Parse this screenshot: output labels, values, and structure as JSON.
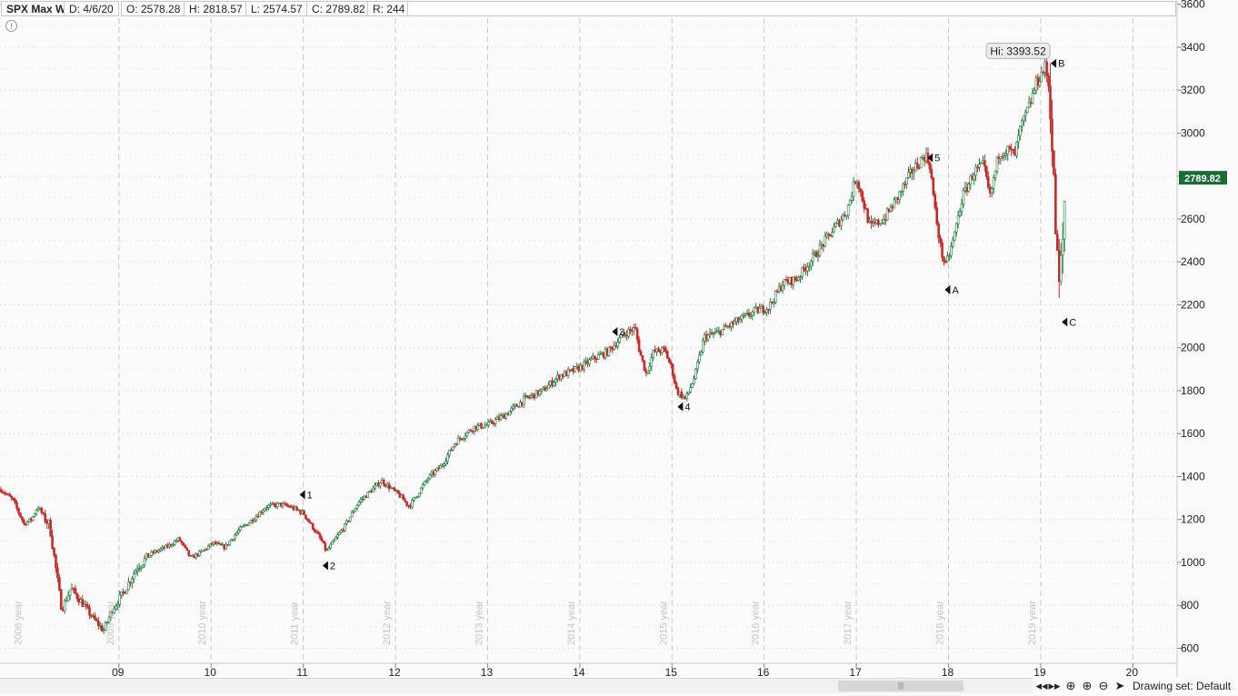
{
  "header": {
    "symbol": "SPX Max W",
    "date": "D: 4/6/20",
    "open": "O: 2578.28",
    "high": "H: 2818.57",
    "low": "L: 2574.57",
    "close": "C: 2789.82",
    "range": "R: 244"
  },
  "info_icon": "!",
  "hi_label": "Hi: 3393.52",
  "last_price": "2789.82",
  "footer": {
    "scroll_grip": "|||",
    "drawing_set": "Drawing set: Default",
    "icons": [
      "scroll-left-icon",
      "scroll-right-icon",
      "crosshair-icon",
      "zoom-in-icon",
      "zoom-out-icon",
      "cursor-icon"
    ]
  },
  "colors": {
    "up": "#1f7a3a",
    "down": "#c42b2b",
    "badge": "#1d6b36",
    "grid": "#d2d2d2"
  },
  "chart_data": {
    "type": "candlestick",
    "interval": "weekly",
    "y_ticks": [
      600,
      800,
      1000,
      1200,
      1400,
      1600,
      1800,
      2000,
      2200,
      2400,
      2600,
      2800,
      3000,
      3200,
      3400,
      3600
    ],
    "y_range": [
      530,
      3620
    ],
    "x_ticks": [
      {
        "label": "09",
        "t": 2009.0
      },
      {
        "label": "10",
        "t": 2010.0
      },
      {
        "label": "11",
        "t": 2011.0
      },
      {
        "label": "12",
        "t": 2012.0
      },
      {
        "label": "13",
        "t": 2013.0
      },
      {
        "label": "14",
        "t": 2014.0
      },
      {
        "label": "15",
        "t": 2015.0
      },
      {
        "label": "16",
        "t": 2016.0
      },
      {
        "label": "17",
        "t": 2017.0
      },
      {
        "label": "18",
        "t": 2018.0
      },
      {
        "label": "19",
        "t": 2019.0
      },
      {
        "label": "20",
        "t": 2020.0
      }
    ],
    "year_labels": [
      {
        "label": "2008 year",
        "t": 2008.0
      },
      {
        "label": "2009 year",
        "t": 2009.0
      },
      {
        "label": "2010 year",
        "t": 2010.0
      },
      {
        "label": "2011 year",
        "t": 2011.0
      },
      {
        "label": "2012 year",
        "t": 2012.0
      },
      {
        "label": "2013 year",
        "t": 2013.0
      },
      {
        "label": "2014 year",
        "t": 2014.0
      },
      {
        "label": "2015 year",
        "t": 2015.0
      },
      {
        "label": "2016 year",
        "t": 2016.0
      },
      {
        "label": "2017 year",
        "t": 2017.0
      },
      {
        "label": "2018 year",
        "t": 2018.0
      },
      {
        "label": "2019 year",
        "t": 2019.0
      }
    ],
    "x_range": [
      2007.71,
      2020.48
    ],
    "price_path": [
      [
        2007.72,
        1340
      ],
      [
        2007.85,
        1290
      ],
      [
        2007.97,
        1180
      ],
      [
        2008.05,
        1200
      ],
      [
        2008.12,
        1260
      ],
      [
        2008.25,
        1170
      ],
      [
        2008.33,
        930
      ],
      [
        2008.38,
        780
      ],
      [
        2008.48,
        880
      ],
      [
        2008.62,
        800
      ],
      [
        2008.72,
        740
      ],
      [
        2008.8,
        700
      ],
      [
        2008.83,
        680
      ],
      [
        2008.93,
        780
      ],
      [
        2009.05,
        860
      ],
      [
        2009.2,
        980
      ],
      [
        2009.35,
        1040
      ],
      [
        2009.55,
        1080
      ],
      [
        2009.65,
        1110
      ],
      [
        2009.78,
        1020
      ],
      [
        2009.9,
        1050
      ],
      [
        2010.02,
        1090
      ],
      [
        2010.15,
        1070
      ],
      [
        2010.3,
        1150
      ],
      [
        2010.45,
        1200
      ],
      [
        2010.6,
        1260
      ],
      [
        2010.75,
        1270
      ],
      [
        2010.85,
        1260
      ],
      [
        2011.0,
        1230
      ],
      [
        2011.2,
        1100
      ],
      [
        2011.25,
        1050
      ],
      [
        2011.45,
        1170
      ],
      [
        2011.6,
        1280
      ],
      [
        2011.75,
        1340
      ],
      [
        2011.85,
        1380
      ],
      [
        2012.05,
        1310
      ],
      [
        2012.15,
        1260
      ],
      [
        2012.35,
        1390
      ],
      [
        2012.5,
        1450
      ],
      [
        2012.65,
        1560
      ],
      [
        2012.85,
        1630
      ],
      [
        2013.0,
        1640
      ],
      [
        2013.2,
        1690
      ],
      [
        2013.4,
        1760
      ],
      [
        2013.6,
        1800
      ],
      [
        2013.78,
        1870
      ],
      [
        2013.92,
        1890
      ],
      [
        2014.05,
        1920
      ],
      [
        2014.15,
        1950
      ],
      [
        2014.3,
        1980
      ],
      [
        2014.5,
        2070
      ],
      [
        2014.6,
        2090
      ],
      [
        2014.65,
        1980
      ],
      [
        2014.72,
        1880
      ],
      [
        2014.8,
        1980
      ],
      [
        2014.92,
        1990
      ],
      [
        2015.0,
        1900
      ],
      [
        2015.05,
        1800
      ],
      [
        2015.15,
        1760
      ],
      [
        2015.25,
        1870
      ],
      [
        2015.35,
        2050
      ],
      [
        2015.5,
        2070
      ],
      [
        2015.65,
        2110
      ],
      [
        2015.78,
        2140
      ],
      [
        2015.9,
        2170
      ],
      [
        2016.05,
        2190
      ],
      [
        2016.2,
        2300
      ],
      [
        2016.35,
        2320
      ],
      [
        2016.55,
        2430
      ],
      [
        2016.75,
        2550
      ],
      [
        2016.9,
        2640
      ],
      [
        2017.0,
        2800
      ],
      [
        2017.05,
        2720
      ],
      [
        2017.15,
        2560
      ],
      [
        2017.3,
        2600
      ],
      [
        2017.45,
        2700
      ],
      [
        2017.6,
        2820
      ],
      [
        2017.75,
        2900
      ],
      [
        2017.8,
        2850
      ],
      [
        2017.85,
        2650
      ],
      [
        2017.92,
        2450
      ],
      [
        2017.97,
        2380
      ],
      [
        2018.05,
        2500
      ],
      [
        2018.15,
        2700
      ],
      [
        2018.28,
        2820
      ],
      [
        2018.38,
        2850
      ],
      [
        2018.45,
        2700
      ],
      [
        2018.55,
        2910
      ],
      [
        2018.65,
        2920
      ],
      [
        2018.72,
        2900
      ],
      [
        2018.78,
        3020
      ],
      [
        2018.88,
        3130
      ],
      [
        2018.95,
        3230
      ],
      [
        2019.05,
        3310
      ],
      [
        2019.1,
        3190
      ],
      [
        2019.13,
        2880
      ],
      [
        2019.17,
        2480
      ],
      [
        2019.2,
        2290
      ],
      [
        2019.24,
        2500
      ],
      [
        2019.27,
        2800
      ]
    ],
    "markers": [
      {
        "label": "1",
        "t": 2010.96,
        "price": 1315
      },
      {
        "label": "2",
        "t": 2011.21,
        "price": 985
      },
      {
        "label": "3",
        "t": 2014.35,
        "price": 2075
      },
      {
        "label": "4",
        "t": 2015.06,
        "price": 1725
      },
      {
        "label": "5",
        "t": 2017.77,
        "price": 2885
      },
      {
        "label": "A",
        "t": 2017.96,
        "price": 2270
      },
      {
        "label": "B",
        "t": 2019.11,
        "price": 3325
      },
      {
        "label": "C",
        "t": 2019.23,
        "price": 2120
      }
    ],
    "hi": {
      "value": 3393.52,
      "t": 2019.1
    },
    "last": {
      "value": 2789.82,
      "t": 2019.27
    }
  }
}
